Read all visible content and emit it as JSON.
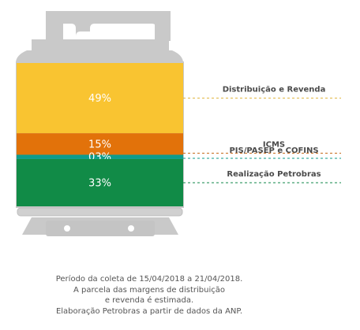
{
  "chart_data": {
    "type": "stacked-bar",
    "segments": [
      {
        "name": "Distribuição e Revenda",
        "value": 49,
        "label": "49%",
        "color": "#F9C431"
      },
      {
        "name": "ICMS",
        "value": 15,
        "label": "15%",
        "color": "#E2720A"
      },
      {
        "name": "PIS/PASEP e COFINS",
        "value": 3,
        "label": "03%",
        "color": "#0E9C8C"
      },
      {
        "name": "Realização Petrobras",
        "value": 33,
        "label": "33%",
        "color": "#118B47"
      }
    ],
    "legend_line_colors": [
      "#E0B23A",
      "#C76A1A",
      "#0F9A8A",
      "#10874A"
    ],
    "graphic": "gas-cylinder",
    "cylinder_color": "#C8C8C8"
  },
  "caption": [
    "Período da coleta de 15/04/2018 a 21/04/2018.",
    "A parcela das margens de distribuição",
    "e revenda é estimada.",
    "Elaboração Petrobras a partir de dados da ANP."
  ]
}
